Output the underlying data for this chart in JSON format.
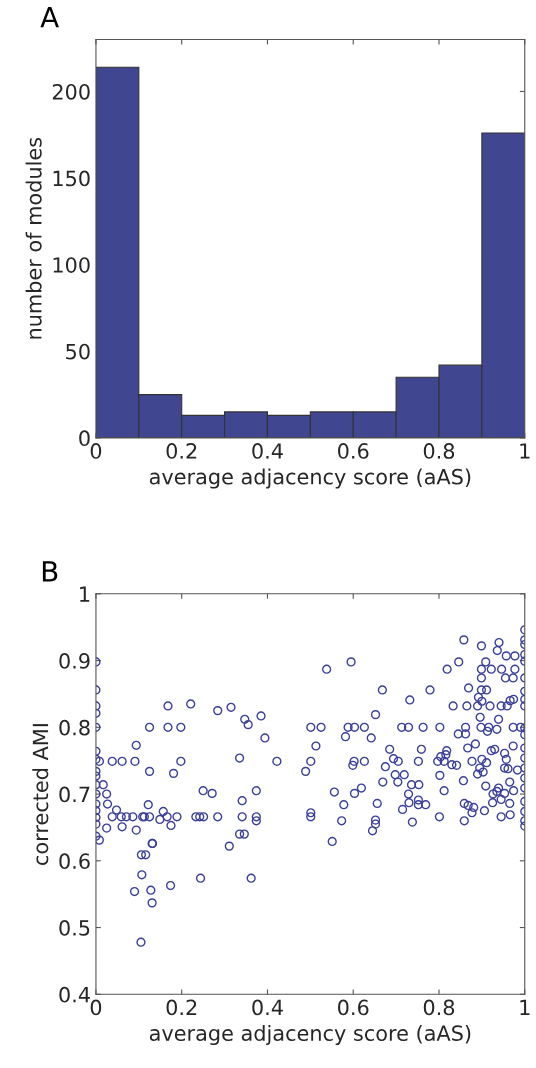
{
  "chart_data": [
    {
      "type": "histogram",
      "title": "A",
      "xlabel": "average adjacency score (aAS)",
      "ylabel": "number of modules",
      "bins": [
        0,
        0.1,
        0.2,
        0.3,
        0.4,
        0.5,
        0.6,
        0.7,
        0.8,
        0.9,
        1
      ],
      "values": [
        214,
        25,
        13,
        15,
        13,
        15,
        15,
        35,
        42,
        176
      ],
      "color": "#40468f",
      "xlim": [
        0,
        1
      ],
      "xticks": [
        0,
        0.2,
        0.4,
        0.6,
        0.8,
        1
      ],
      "ylim": [
        0,
        230
      ],
      "yticks": [
        0,
        50,
        100,
        150,
        200
      ],
      "grid": false,
      "legend": false
    },
    {
      "type": "scatter",
      "title": "B",
      "xlabel": "average adjacency score (aAS)",
      "ylabel": "corrected AMI",
      "marker": "circle",
      "color": "#3a3f9a",
      "xlim": [
        0,
        1
      ],
      "xticks": [
        0,
        0.2,
        0.4,
        0.6,
        0.8,
        1
      ],
      "ylim": [
        0.4,
        1
      ],
      "yticks": [
        0.4,
        0.5,
        0.6,
        0.7,
        0.8,
        0.9,
        1
      ],
      "grid": false,
      "legend": false,
      "x": [
        0,
        0,
        0,
        0,
        0,
        0,
        0,
        0,
        0,
        0,
        0,
        0,
        0,
        0,
        0,
        0,
        0.008,
        0.008,
        0.017,
        0.025,
        0.027,
        0.025,
        0.048,
        0.038,
        0.061,
        0.091,
        0.061,
        0.094,
        0.094,
        0.125,
        0.125,
        0.122,
        0.131,
        0.168,
        0.168,
        0.198,
        0.198,
        0.181,
        0.157,
        0.175,
        0.149,
        0.221,
        0.284,
        0.315,
        0.347,
        0.355,
        0.385,
        0.394,
        0.335,
        0.422,
        0.25,
        0.271,
        0.341,
        0.374,
        0.311,
        0.335,
        0.346,
        0.374,
        0.038,
        0.059,
        0.071,
        0.086,
        0.109,
        0.113,
        0.125,
        0.166,
        0.189,
        0.233,
        0.242,
        0.251,
        0.284,
        0.341,
        0.374,
        0.132,
        0.106,
        0.116,
        0.107,
        0.09,
        0.128,
        0.174,
        0.244,
        0.362,
        0.131,
        0.105,
        0.538,
        0.595,
        0.668,
        0.732,
        0.779,
        0.652,
        0.858,
        0.899,
        0.94,
        0.936,
        0.957,
        0.977,
        0.846,
        0.909,
        0.819,
        0.899,
        0.922,
        0.946,
        0.977,
        0.899,
        0.955,
        0.973,
        0.869,
        0.899,
        0.911,
        0.892,
        0.9,
        0.966,
        0.974,
        0.833,
        0.865,
        0.89,
        0.919,
        0.945,
        0.959,
        0.896,
        0.939,
        0.501,
        0.525,
        0.588,
        0.603,
        0.626,
        0.713,
        0.729,
        0.763,
        0.802,
        0.862,
        0.898,
        0.916,
        0.973,
        0.99,
        0.582,
        0.642,
        0.845,
        0.862,
        0.913,
        0.935,
        0.513,
        0.885,
        0.867,
        0.685,
        0.759,
        0.818,
        0.922,
        0.93,
        0.973,
        0.953,
        0.501,
        0.602,
        0.626,
        0.752,
        0.797,
        0.812,
        0.877,
        0.9,
        0.957,
        0.489,
        0.599,
        0.694,
        0.705,
        0.675,
        0.804,
        0.816,
        0.83,
        0.841,
        0.911,
        0.953,
        0.961,
        0.983,
        0.895,
        0.89,
        0.903,
        0.698,
        0.719,
        0.802,
        0.669,
        0.704,
        0.857,
        0.909,
        0.965,
        0.736,
        0.753,
        0.556,
        0.603,
        0.619,
        0.812,
        0.939,
        0.935,
        0.926,
        0.953,
        0.974,
        0.729,
        0.578,
        0.656,
        0.73,
        0.752,
        0.752,
        0.769,
        0.859,
        0.868,
        0.881,
        0.925,
        0.945,
        0.965,
        0.715,
        0.877,
        0.906,
        0.501,
        0.501,
        0.573,
        0.652,
        0.652,
        0.645,
        0.738,
        0.801,
        0.859,
        0.945,
        0.966,
        0.551,
        1,
        1,
        1,
        1,
        1,
        1,
        1,
        1,
        1,
        1,
        1,
        1,
        1,
        1,
        1,
        1,
        1,
        1,
        1,
        1
      ],
      "values": [
        0.898,
        0.856,
        0.832,
        0.821,
        0.8,
        0.764,
        0.752,
        0.734,
        0.727,
        0.714,
        0.7,
        0.685,
        0.675,
        0.665,
        0.655,
        0.637,
        0.749,
        0.631,
        0.714,
        0.7,
        0.685,
        0.649,
        0.676,
        0.749,
        0.749,
        0.749,
        0.651,
        0.773,
        0.646,
        0.8,
        0.734,
        0.684,
        0.626,
        0.832,
        0.8,
        0.8,
        0.749,
        0.731,
        0.674,
        0.653,
        0.662,
        0.835,
        0.825,
        0.83,
        0.812,
        0.804,
        0.817,
        0.784,
        0.754,
        0.749,
        0.705,
        0.701,
        0.69,
        0.705,
        0.622,
        0.64,
        0.64,
        0.66,
        0.666,
        0.666,
        0.666,
        0.666,
        0.666,
        0.666,
        0.666,
        0.666,
        0.666,
        0.666,
        0.666,
        0.666,
        0.666,
        0.666,
        0.666,
        0.626,
        0.609,
        0.609,
        0.579,
        0.554,
        0.556,
        0.563,
        0.574,
        0.574,
        0.537,
        0.478,
        0.887,
        0.898,
        0.856,
        0.841,
        0.856,
        0.819,
        0.931,
        0.922,
        0.927,
        0.915,
        0.907,
        0.907,
        0.898,
        0.898,
        0.887,
        0.887,
        0.887,
        0.887,
        0.887,
        0.874,
        0.874,
        0.874,
        0.859,
        0.856,
        0.856,
        0.845,
        0.839,
        0.84,
        0.842,
        0.832,
        0.832,
        0.832,
        0.832,
        0.832,
        0.832,
        0.815,
        0.812,
        0.8,
        0.8,
        0.8,
        0.8,
        0.8,
        0.8,
        0.8,
        0.8,
        0.8,
        0.8,
        0.8,
        0.8,
        0.8,
        0.8,
        0.786,
        0.784,
        0.79,
        0.79,
        0.794,
        0.797,
        0.772,
        0.775,
        0.769,
        0.767,
        0.767,
        0.765,
        0.765,
        0.767,
        0.772,
        0.761,
        0.749,
        0.749,
        0.749,
        0.749,
        0.749,
        0.749,
        0.749,
        0.752,
        0.752,
        0.734,
        0.743,
        0.753,
        0.749,
        0.741,
        0.756,
        0.759,
        0.744,
        0.743,
        0.747,
        0.739,
        0.738,
        0.736,
        0.739,
        0.73,
        0.733,
        0.729,
        0.729,
        0.728,
        0.718,
        0.718,
        0.72,
        0.712,
        0.718,
        0.714,
        0.714,
        0.703,
        0.701,
        0.709,
        0.705,
        0.709,
        0.704,
        0.7,
        0.701,
        0.705,
        0.7,
        0.684,
        0.686,
        0.687,
        0.691,
        0.684,
        0.684,
        0.686,
        0.683,
        0.68,
        0.687,
        0.692,
        0.686,
        0.677,
        0.672,
        0.675,
        0.672,
        0.666,
        0.66,
        0.661,
        0.655,
        0.645,
        0.658,
        0.666,
        0.66,
        0.666,
        0.669,
        0.629,
        0.946,
        0.931,
        0.924,
        0.909,
        0.899,
        0.874,
        0.854,
        0.842,
        0.832,
        0.799,
        0.789,
        0.769,
        0.754,
        0.739,
        0.724,
        0.709,
        0.689,
        0.674,
        0.66,
        0.652
      ]
    }
  ]
}
